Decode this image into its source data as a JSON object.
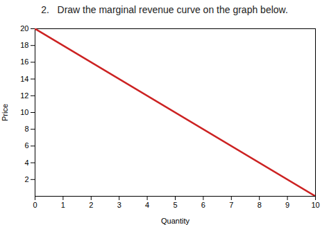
{
  "chart_data": {
    "type": "line",
    "title": "2.   Draw the marginal revenue curve on the graph below.",
    "xlabel": "Quantity",
    "ylabel": "Price",
    "x": [
      0,
      10
    ],
    "values": [
      20,
      0
    ],
    "color": "#cc2222",
    "xlim": [
      0,
      10
    ],
    "ylim": [
      0,
      20
    ],
    "xticks": [
      0,
      1,
      2,
      3,
      4,
      5,
      6,
      7,
      8,
      9,
      10
    ],
    "yticks": [
      2,
      4,
      6,
      8,
      10,
      12,
      14,
      16,
      18,
      20
    ],
    "grid": false
  }
}
